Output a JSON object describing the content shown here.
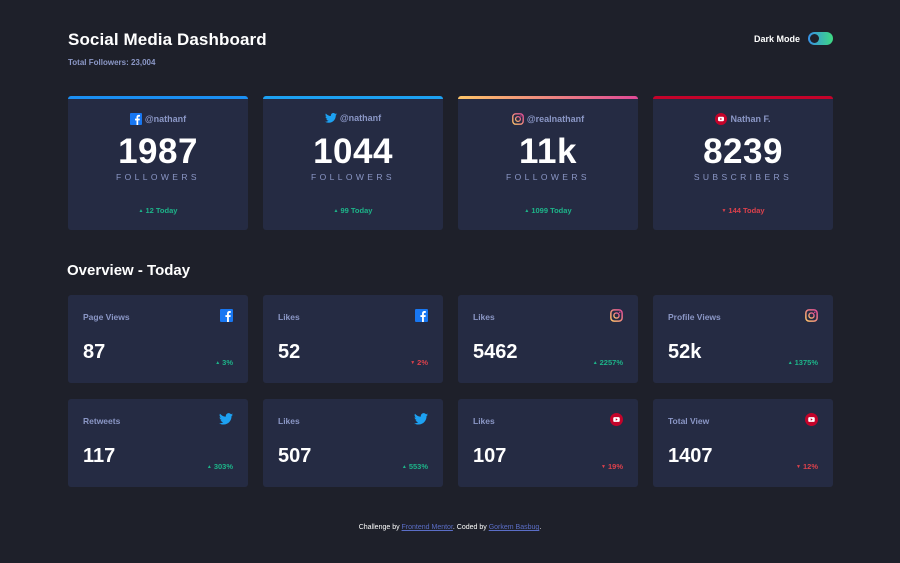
{
  "header": {
    "title": "Social Media Dashboard",
    "subtitle": "Total Followers: 23,004",
    "mode_label": "Dark Mode"
  },
  "colors": {
    "facebook": "#1877f2",
    "twitter": "#1da1f2",
    "instagram_start": "#fdc468",
    "instagram_end": "#df4996",
    "youtube": "#c4032a",
    "up": "#1db489",
    "down": "#dc414c"
  },
  "cards": [
    {
      "network": "facebook",
      "icon": "facebook-icon",
      "handle": "@nathanf",
      "value": "1987",
      "label": "FOLLOWERS",
      "today": "12 Today",
      "trend": "up"
    },
    {
      "network": "twitter",
      "icon": "twitter-icon",
      "handle": "@nathanf",
      "value": "1044",
      "label": "FOLLOWERS",
      "today": "99 Today",
      "trend": "up"
    },
    {
      "network": "instagram",
      "icon": "instagram-icon",
      "handle": "@realnathanf",
      "value": "11k",
      "label": "FOLLOWERS",
      "today": "1099 Today",
      "trend": "up"
    },
    {
      "network": "youtube",
      "icon": "youtube-icon",
      "handle": "Nathan F.",
      "value": "8239",
      "label": "SUBSCRIBERS",
      "today": "144 Today",
      "trend": "down"
    }
  ],
  "overview": {
    "title": "Overview - Today",
    "tiles": [
      {
        "label": "Page Views",
        "icon": "facebook-icon",
        "value": "87",
        "change": "3%",
        "trend": "up"
      },
      {
        "label": "Likes",
        "icon": "facebook-icon",
        "value": "52",
        "change": "2%",
        "trend": "down"
      },
      {
        "label": "Likes",
        "icon": "instagram-icon",
        "value": "5462",
        "change": "2257%",
        "trend": "up"
      },
      {
        "label": "Profile Views",
        "icon": "instagram-icon",
        "value": "52k",
        "change": "1375%",
        "trend": "up"
      },
      {
        "label": "Retweets",
        "icon": "twitter-icon",
        "value": "117",
        "change": "303%",
        "trend": "up"
      },
      {
        "label": "Likes",
        "icon": "twitter-icon",
        "value": "507",
        "change": "553%",
        "trend": "up"
      },
      {
        "label": "Likes",
        "icon": "youtube-icon",
        "value": "107",
        "change": "19%",
        "trend": "down"
      },
      {
        "label": "Total View",
        "icon": "youtube-icon",
        "value": "1407",
        "change": "12%",
        "trend": "down"
      }
    ]
  },
  "footer": {
    "prefix": "Challenge by ",
    "link1": "Frontend Mentor",
    "middle": ". Coded by ",
    "link2": "Gorkem Basbug",
    "suffix": "."
  }
}
